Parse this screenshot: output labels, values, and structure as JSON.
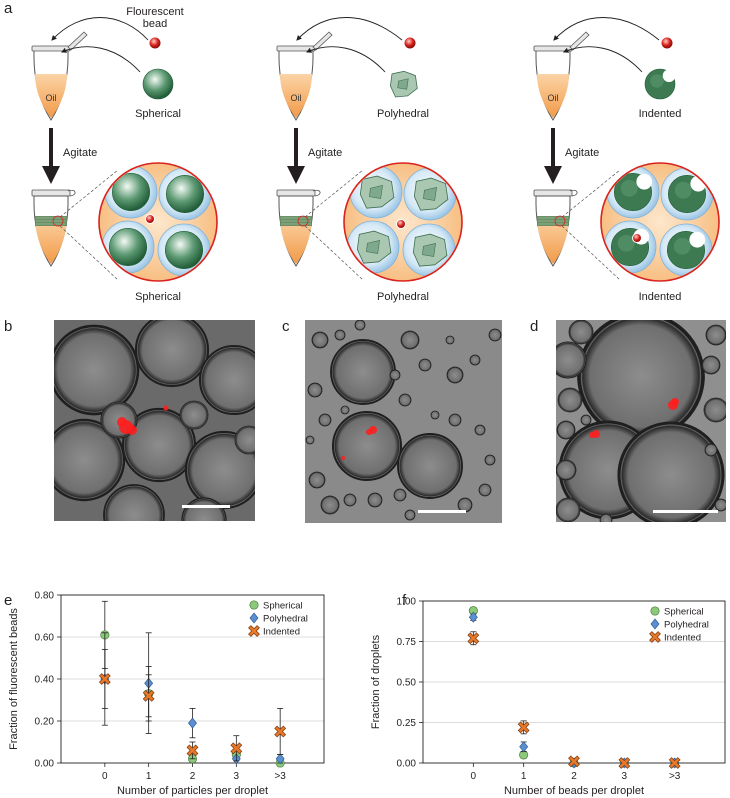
{
  "panel_labels": {
    "a": "a",
    "b": "b",
    "c": "c",
    "d": "d",
    "e": "e",
    "f": "f"
  },
  "schematic": {
    "bead_label": "Flourescent\nbead",
    "oil_label": "Oil",
    "agitate_label": "Agitate",
    "columns": [
      {
        "shape_label": "Spherical",
        "result_label": "Spherical"
      },
      {
        "shape_label": "Polyhedral",
        "result_label": "Polyhedral"
      },
      {
        "shape_label": "Indented",
        "result_label": "Indented"
      }
    ]
  },
  "colors": {
    "bead_red": "#d9231f",
    "particle_green": "#2e7d4f",
    "oil_orange": "#f6b775",
    "droplet_blue": "#b9d8ee",
    "spherical_marker": "#8cc97a",
    "polyhedral_marker": "#5b8fd0",
    "indented_marker": "#e8782a"
  },
  "chart_data": [
    {
      "type": "scatter",
      "xlabel": "Number of particles per droplet",
      "ylabel": "Fraction of fluorescent beads",
      "categories": [
        "0",
        "1",
        "2",
        "3",
        ">3"
      ],
      "yticks": [
        "0.00",
        "0.20",
        "0.40",
        "0.60",
        "0.80"
      ],
      "ylim": [
        0,
        0.8
      ],
      "grid": true,
      "legend_position": "top-right",
      "series": [
        {
          "name": "Spherical",
          "marker": "circle",
          "values": [
            0.61,
            0.33,
            0.02,
            0.04,
            0.0
          ],
          "errors": [
            0.16,
            0.13,
            0.0,
            0.02,
            0.0
          ]
        },
        {
          "name": "Polyhedral",
          "marker": "diamond",
          "values": [
            0.4,
            0.38,
            0.19,
            0.02,
            0.02
          ],
          "errors": [
            0.14,
            0.24,
            0.07,
            0.0,
            0.02
          ]
        },
        {
          "name": "Indented",
          "marker": "x",
          "values": [
            0.4,
            0.32,
            0.06,
            0.07,
            0.15
          ],
          "errors": [
            0.22,
            0.1,
            0.04,
            0.06,
            0.11
          ]
        }
      ]
    },
    {
      "type": "scatter",
      "xlabel": "Number of beads per droplet",
      "ylabel": "Fraction of droplets",
      "categories": [
        "0",
        "1",
        "2",
        "3",
        ">3"
      ],
      "yticks": [
        "0.00",
        "0.25",
        "0.50",
        "0.75",
        "1.00"
      ],
      "ylim": [
        0,
        1.0
      ],
      "grid": true,
      "legend_position": "top-right",
      "series": [
        {
          "name": "Spherical",
          "marker": "circle",
          "values": [
            0.94,
            0.05,
            0.0,
            0.0,
            0.0
          ],
          "errors": [
            0.02,
            0.02,
            0.0,
            0.0,
            0.0
          ]
        },
        {
          "name": "Polyhedral",
          "marker": "diamond",
          "values": [
            0.9,
            0.1,
            0.0,
            0.0,
            0.0
          ],
          "errors": [
            0.02,
            0.03,
            0.0,
            0.0,
            0.0
          ]
        },
        {
          "name": "Indented",
          "marker": "x",
          "values": [
            0.77,
            0.22,
            0.01,
            0.0,
            0.0
          ],
          "errors": [
            0.04,
            0.04,
            0.0,
            0.0,
            0.0
          ]
        }
      ]
    }
  ]
}
